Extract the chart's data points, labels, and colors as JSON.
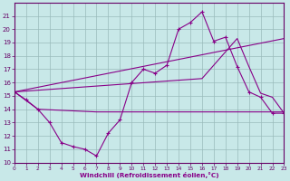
{
  "background_color": "#c8e8e8",
  "grid_color": "#99bbbb",
  "line_color": "#880088",
  "xlabel": "Windchill (Refroidissement éolien,°C)",
  "xlim": [
    0,
    23
  ],
  "ylim": [
    10,
    22
  ],
  "yticks": [
    10,
    11,
    12,
    13,
    14,
    15,
    16,
    17,
    18,
    19,
    20,
    21
  ],
  "xticks": [
    0,
    1,
    2,
    3,
    4,
    5,
    6,
    7,
    8,
    9,
    10,
    11,
    12,
    13,
    14,
    15,
    16,
    17,
    18,
    19,
    20,
    21,
    22,
    23
  ],
  "line1_x": [
    0,
    1,
    2,
    3,
    4,
    5,
    6,
    7,
    8,
    9,
    10,
    11,
    12,
    13,
    14,
    15,
    16,
    17,
    18,
    19,
    20,
    21,
    22,
    23
  ],
  "line1_y": [
    15.3,
    14.7,
    14.0,
    13.0,
    11.5,
    11.2,
    11.0,
    10.5,
    12.2,
    13.2,
    16.0,
    17.0,
    16.7,
    17.3,
    20.0,
    20.5,
    21.3,
    19.1,
    19.4,
    17.2,
    15.3,
    14.9,
    13.7,
    13.7
  ],
  "line2_x": [
    0,
    2,
    7,
    8,
    23
  ],
  "line2_y": [
    15.3,
    14.0,
    13.8,
    13.8,
    13.8
  ],
  "line3_x": [
    0,
    16,
    19,
    20,
    21,
    22,
    23
  ],
  "line3_y": [
    15.3,
    16.3,
    19.3,
    17.2,
    15.2,
    14.9,
    13.7
  ],
  "line4_x": [
    0,
    23
  ],
  "line4_y": [
    15.3,
    19.3
  ],
  "figsize": [
    3.2,
    2.0
  ],
  "dpi": 100
}
